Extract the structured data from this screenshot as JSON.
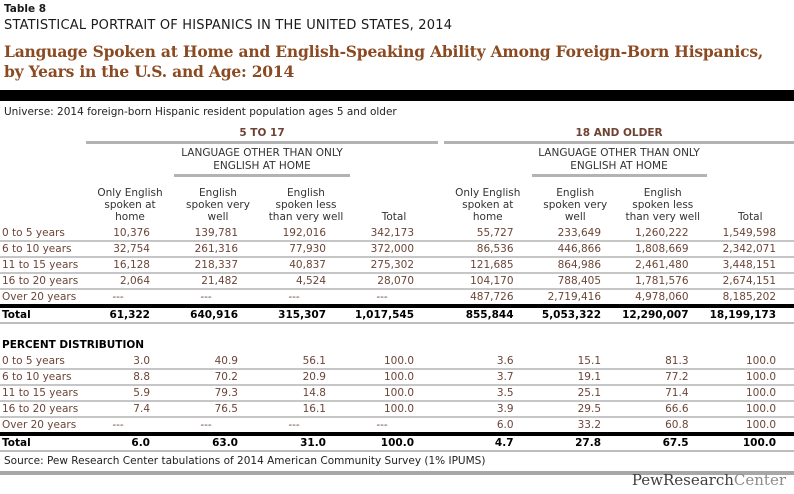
{
  "header": {
    "table_label": "Table 8",
    "report_title": "STATISTICAL PORTRAIT OF HISPANICS IN THE UNITED STATES, 2014",
    "title_line1": "Language Spoken at Home and English-Speaking Ability Among Foreign-Born Hispanics,",
    "title_line2": "by Years in the U.S. and Age: 2014",
    "universe": "Universe: 2014 foreign-born Hispanic resident population ages 5 and older"
  },
  "colors": {
    "title_brown": "#8b4a21",
    "data_brown": "#6b4637",
    "rule_gray": "#b3b3b3",
    "row_line_gray": "#c6c6c6",
    "total_rule_black": "#000000"
  },
  "table": {
    "panels": [
      {
        "title": "5 TO 17",
        "subtitle": "LANGUAGE OTHER THAN ONLY ENGLISH AT HOME"
      },
      {
        "title": "18 AND OLDER",
        "subtitle": "LANGUAGE OTHER THAN ONLY ENGLISH AT HOME"
      }
    ],
    "columns": [
      "Only English spoken at home",
      "English spoken very well",
      "English spoken less than very well",
      "Total"
    ],
    "count_rows": [
      {
        "label": "0 to 5 years",
        "left": [
          "10,376",
          "139,781",
          "192,016",
          "342,173"
        ],
        "right": [
          "55,727",
          "233,649",
          "1,260,222",
          "1,549,598"
        ]
      },
      {
        "label": "6 to 10 years",
        "left": [
          "32,754",
          "261,316",
          "77,930",
          "372,000"
        ],
        "right": [
          "86,536",
          "446,866",
          "1,808,669",
          "2,342,071"
        ]
      },
      {
        "label": "11 to 15 years",
        "left": [
          "16,128",
          "218,337",
          "40,837",
          "275,302"
        ],
        "right": [
          "121,685",
          "864,986",
          "2,461,480",
          "3,448,151"
        ]
      },
      {
        "label": "16 to 20 years",
        "left": [
          "2,064",
          "21,482",
          "4,524",
          "28,070"
        ],
        "right": [
          "104,170",
          "788,405",
          "1,781,576",
          "2,674,151"
        ]
      },
      {
        "label": "Over 20 years",
        "left": [
          "---",
          "---",
          "---",
          "---"
        ],
        "right": [
          "487,726",
          "2,719,416",
          "4,978,060",
          "8,185,202"
        ]
      }
    ],
    "count_total": {
      "label": "Total",
      "left": [
        "61,322",
        "640,916",
        "315,307",
        "1,017,545"
      ],
      "right": [
        "855,844",
        "5,053,322",
        "12,290,007",
        "18,199,173"
      ]
    },
    "percent_section_label": "PERCENT DISTRIBUTION",
    "percent_rows": [
      {
        "label": "0 to 5 years",
        "left": [
          "3.0",
          "40.9",
          "56.1",
          "100.0"
        ],
        "right": [
          "3.6",
          "15.1",
          "81.3",
          "100.0"
        ]
      },
      {
        "label": "6 to 10 years",
        "left": [
          "8.8",
          "70.2",
          "20.9",
          "100.0"
        ],
        "right": [
          "3.7",
          "19.1",
          "77.2",
          "100.0"
        ]
      },
      {
        "label": "11 to 15 years",
        "left": [
          "5.9",
          "79.3",
          "14.8",
          "100.0"
        ],
        "right": [
          "3.5",
          "25.1",
          "71.4",
          "100.0"
        ]
      },
      {
        "label": "16 to 20 years",
        "left": [
          "7.4",
          "76.5",
          "16.1",
          "100.0"
        ],
        "right": [
          "3.9",
          "29.5",
          "66.6",
          "100.0"
        ]
      },
      {
        "label": "Over 20 years",
        "left": [
          "---",
          "---",
          "---",
          "---"
        ],
        "right": [
          "6.0",
          "33.2",
          "60.8",
          "100.0"
        ]
      }
    ],
    "percent_total": {
      "label": "Total",
      "left": [
        "6.0",
        "63.0",
        "31.0",
        "100.0"
      ],
      "right": [
        "4.7",
        "27.8",
        "67.5",
        "100.0"
      ]
    }
  },
  "footer": {
    "source": "Source: Pew Research Center tabulations of 2014 American Community Survey (1% IPUMS)",
    "logo_part1": "PewResearch",
    "logo_part2": "Center"
  }
}
